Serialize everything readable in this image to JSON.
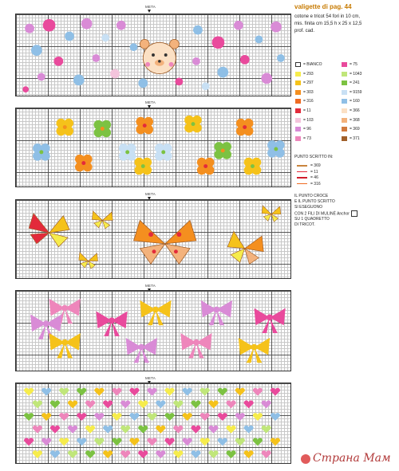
{
  "header": {
    "title": "valigette di pag. 44",
    "info_lines": [
      "cotone e tricot 54 fori in 10 cm,",
      "mis. finita cm 15,5 h x 25 x 12,5",
      "prof. cad."
    ]
  },
  "meta_label": "META",
  "legend": [
    {
      "code": "= BIANCO",
      "color": "#ffffff"
    },
    {
      "code": "= 75",
      "color": "#e94a9c"
    },
    {
      "code": "= 293",
      "color": "#f6ec4c"
    },
    {
      "code": "= 1043",
      "color": "#c0e67a"
    },
    {
      "code": "= 297",
      "color": "#f5c21a"
    },
    {
      "code": "= 241",
      "color": "#7cc242"
    },
    {
      "code": "= 303",
      "color": "#f48f1f"
    },
    {
      "code": "= 9159",
      "color": "#c8e0f4"
    },
    {
      "code": "= 316",
      "color": "#ef6b22"
    },
    {
      "code": "= 160",
      "color": "#8fbfe6"
    },
    {
      "code": "= 11",
      "color": "#e32a3b"
    },
    {
      "code": "= 366",
      "color": "#fbe0c4"
    },
    {
      "code": "= 103",
      "color": "#f4c4dc"
    },
    {
      "code": "= 368",
      "color": "#f3b27c"
    },
    {
      "code": "= 96",
      "color": "#d98bd6"
    },
    {
      "code": "= 369",
      "color": "#d17a3e"
    },
    {
      "code": "= 73",
      "color": "#ee86bb"
    },
    {
      "code": "= 371",
      "color": "#a05f2a"
    }
  ],
  "backstitch": {
    "title": "PUNTO SCRITTO IN:",
    "lines": [
      {
        "code": "= 369",
        "color": "#c9843e"
      },
      {
        "code": "= 11",
        "color": "#e32a3b"
      },
      {
        "code": "= 46",
        "color": "#d11c2c"
      },
      {
        "code": "= 316",
        "color": "#ef6b22"
      }
    ]
  },
  "note": {
    "lines": [
      "IL PUNTO CROCE",
      "E IL PUNTO SCRITTO",
      "SI ESEGUONO",
      "CON 2 FILI DI MULINÉ Anchor",
      "SU 1 QUADRETTO",
      "DI TRICOT."
    ]
  },
  "watermark": "Страна Мам"
}
